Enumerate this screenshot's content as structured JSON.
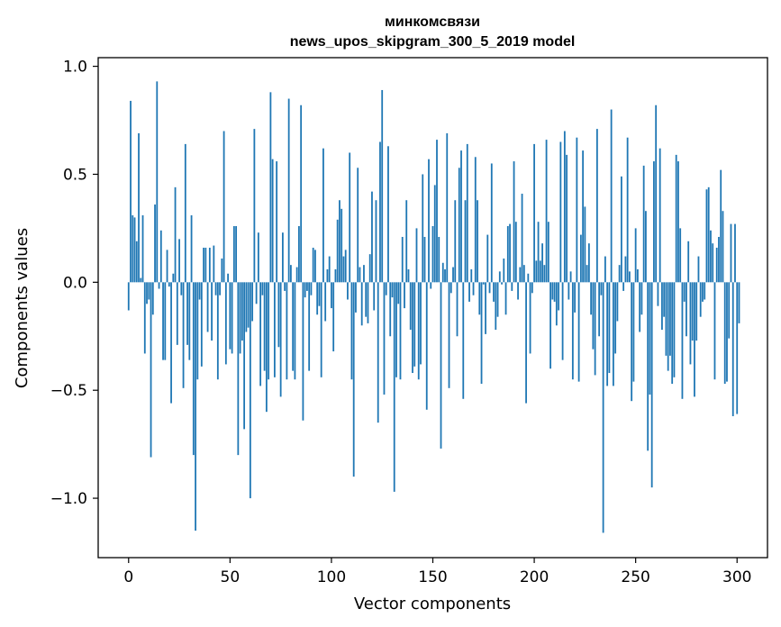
{
  "chart_data": {
    "type": "bar",
    "title_line1": "минкомсвязи",
    "title_line2": "news_upos_skipgram_300_5_2019 model",
    "xlabel": "Vector components",
    "ylabel": "Components values",
    "xlim": [
      -15,
      315
    ],
    "ylim": [
      -1.275,
      1.04
    ],
    "xticks": [
      0,
      50,
      100,
      150,
      200,
      250,
      300
    ],
    "xtick_labels": [
      "0",
      "50",
      "100",
      "150",
      "200",
      "250",
      "300"
    ],
    "yticks": [
      -1.0,
      -0.5,
      0.0,
      0.5,
      1.0
    ],
    "ytick_labels": [
      "−1.0",
      "−0.5",
      "0.0",
      "0.5",
      "1.0"
    ],
    "bar_color": "#1f77b4",
    "values": [
      -0.13,
      0.84,
      0.31,
      0.3,
      0.19,
      0.69,
      0.02,
      0.31,
      -0.33,
      -0.1,
      -0.08,
      -0.81,
      -0.15,
      0.36,
      0.93,
      -0.03,
      0.24,
      -0.36,
      -0.36,
      0.15,
      -0.02,
      -0.56,
      0.04,
      0.44,
      -0.29,
      0.2,
      -0.06,
      -0.49,
      0.64,
      -0.29,
      -0.36,
      0.31,
      -0.8,
      -1.15,
      -0.45,
      -0.08,
      -0.39,
      0.16,
      0.16,
      -0.23,
      0.16,
      -0.27,
      0.17,
      -0.06,
      -0.45,
      -0.06,
      0.11,
      0.7,
      -0.38,
      0.04,
      -0.31,
      -0.33,
      0.26,
      0.26,
      -0.8,
      -0.33,
      -0.27,
      -0.68,
      -0.23,
      -0.21,
      -1.0,
      -0.18,
      0.71,
      -0.1,
      0.23,
      -0.48,
      -0.06,
      -0.41,
      -0.6,
      -0.45,
      0.88,
      0.57,
      -0.44,
      0.56,
      -0.3,
      -0.53,
      0.23,
      -0.04,
      -0.45,
      0.85,
      0.08,
      -0.41,
      -0.45,
      0.07,
      0.26,
      0.82,
      -0.64,
      -0.07,
      -0.04,
      -0.41,
      -0.06,
      0.16,
      0.15,
      -0.15,
      -0.11,
      -0.44,
      0.62,
      -0.18,
      0.06,
      0.12,
      -0.12,
      -0.32,
      0.06,
      0.29,
      0.38,
      0.34,
      0.12,
      0.15,
      -0.08,
      0.6,
      -0.45,
      -0.9,
      -0.14,
      0.53,
      0.07,
      -0.2,
      0.08,
      -0.16,
      -0.19,
      0.13,
      0.42,
      -0.13,
      0.38,
      -0.65,
      0.65,
      0.89,
      -0.52,
      -0.06,
      0.63,
      -0.25,
      -0.07,
      -0.97,
      -0.44,
      -0.1,
      -0.45,
      0.21,
      -0.12,
      0.38,
      0.06,
      -0.22,
      -0.42,
      -0.39,
      0.25,
      -0.45,
      -0.38,
      0.5,
      0.21,
      -0.59,
      0.57,
      -0.03,
      0.26,
      0.45,
      0.66,
      0.21,
      -0.77,
      0.09,
      0.06,
      0.69,
      -0.49,
      -0.05,
      0.07,
      0.38,
      -0.25,
      0.53,
      0.61,
      -0.54,
      0.38,
      0.64,
      -0.09,
      0.06,
      -0.06,
      0.58,
      0.38,
      -0.15,
      -0.47,
      -0.01,
      -0.24,
      0.22,
      -0.05,
      0.55,
      -0.09,
      -0.22,
      -0.16,
      0.05,
      -0.01,
      0.11,
      -0.15,
      0.26,
      0.27,
      -0.04,
      0.56,
      0.28,
      -0.08,
      0.07,
      0.41,
      0.08,
      -0.56,
      0.04,
      -0.33,
      -0.05,
      0.64,
      0.1,
      0.28,
      0.1,
      0.18,
      0.08,
      0.66,
      0.28,
      -0.4,
      -0.08,
      -0.09,
      -0.2,
      -0.13,
      0.65,
      -0.36,
      0.7,
      0.59,
      -0.08,
      0.05,
      -0.45,
      -0.14,
      0.67,
      -0.46,
      0.22,
      0.61,
      0.35,
      0.08,
      0.18,
      -0.15,
      -0.31,
      -0.43,
      0.71,
      -0.25,
      -0.06,
      -1.16,
      0.12,
      -0.48,
      -0.42,
      0.8,
      -0.48,
      -0.33,
      -0.18,
      0.08,
      0.49,
      -0.04,
      0.12,
      0.67,
      0.05,
      -0.55,
      -0.46,
      0.25,
      0.06,
      -0.23,
      -0.15,
      0.54,
      0.33,
      -0.78,
      -0.52,
      -0.95,
      0.56,
      0.82,
      -0.11,
      0.62,
      -0.22,
      -0.16,
      -0.34,
      -0.41,
      -0.34,
      -0.47,
      -0.44,
      0.59,
      0.56,
      0.25,
      -0.54,
      -0.09,
      -0.25,
      0.19,
      -0.38,
      -0.27,
      -0.53,
      -0.27,
      0.12,
      -0.16,
      -0.09,
      -0.08,
      0.43,
      0.44,
      0.24,
      0.18,
      -0.45,
      0.16,
      0.21,
      0.52,
      0.33,
      -0.47,
      -0.46,
      -0.26,
      0.27,
      -0.62,
      0.27,
      -0.61,
      -0.19
    ]
  }
}
